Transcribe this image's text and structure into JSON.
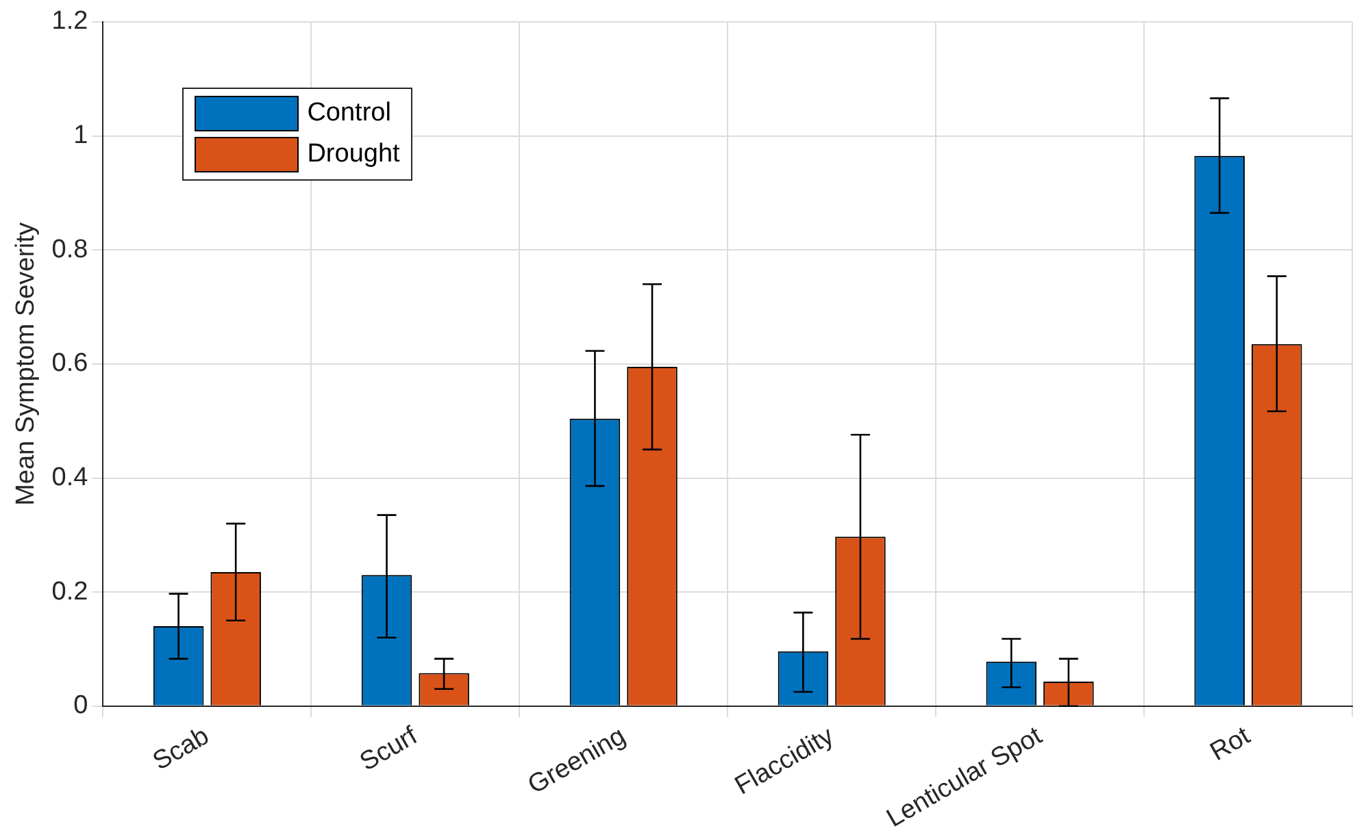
{
  "chart_data": {
    "type": "bar",
    "ylabel": "Mean Symptom Severity",
    "categories": [
      "Scab",
      "Scurf",
      "Greening",
      "Flaccidity",
      "Lenticular Spot",
      "Rot"
    ],
    "series": [
      {
        "name": "Control",
        "color": "#0072bd",
        "values": [
          0.14,
          0.23,
          0.504,
          0.096,
          0.078,
          0.965
        ],
        "errors": [
          [
            0.083,
            0.197
          ],
          [
            0.12,
            0.335
          ],
          [
            0.386,
            0.623
          ],
          [
            0.025,
            0.164
          ],
          [
            0.033,
            0.118
          ],
          [
            0.865,
            1.066
          ]
        ]
      },
      {
        "name": "Drought",
        "color": "#d95319",
        "values": [
          0.235,
          0.058,
          0.595,
          0.297,
          0.043,
          0.635
        ],
        "errors": [
          [
            0.15,
            0.32
          ],
          [
            0.03,
            0.083
          ],
          [
            0.45,
            0.74
          ],
          [
            0.118,
            0.476
          ],
          [
            0,
            0.083
          ],
          [
            0.517,
            0.754
          ]
        ]
      }
    ],
    "ylim": [
      0,
      1.2
    ],
    "yticks": [
      0,
      0.2,
      0.4,
      0.6,
      0.8,
      1,
      1.2
    ],
    "grid": true,
    "legend": "top left"
  }
}
